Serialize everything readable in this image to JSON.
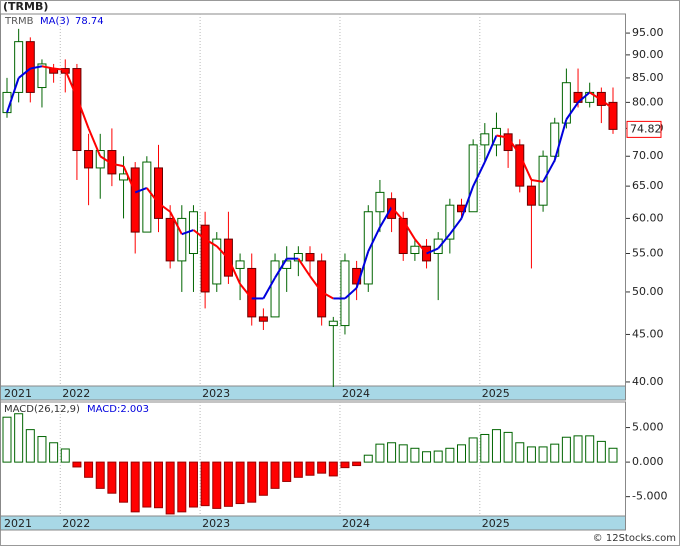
{
  "chart_data": [
    {
      "type": "candlestick",
      "title": "(TRMB)",
      "log_scale": true,
      "categories": [
        "2021",
        null,
        null,
        null,
        null,
        "2022",
        null,
        null,
        null,
        null,
        null,
        null,
        null,
        null,
        null,
        null,
        null,
        "2023",
        null,
        null,
        null,
        null,
        null,
        null,
        null,
        null,
        null,
        null,
        null,
        "2024",
        null,
        null,
        null,
        null,
        null,
        null,
        null,
        null,
        null,
        null,
        null,
        "2025",
        null,
        null,
        null,
        null,
        null,
        null,
        null,
        null,
        null,
        null,
        null
      ],
      "series": [
        {
          "name": "TRMB",
          "up_color": "#006400",
          "down_color": "#ff0000",
          "open": [
            78,
            82,
            93,
            83,
            87,
            87,
            87,
            71,
            68,
            71,
            66,
            68,
            58,
            68,
            60,
            54,
            55,
            59,
            51,
            57,
            53,
            53,
            47,
            47,
            53,
            54,
            55,
            54,
            46,
            46,
            53,
            51,
            61,
            63,
            60,
            55,
            56,
            55,
            57,
            62,
            61,
            72,
            72,
            74,
            72,
            65,
            62,
            70,
            76,
            82,
            80,
            82,
            80
          ],
          "high": [
            85,
            96,
            94,
            89,
            88,
            89,
            88,
            74,
            74,
            75,
            70,
            69,
            70,
            72,
            62,
            62,
            62,
            61,
            58,
            61,
            55,
            55,
            48,
            55,
            56,
            56,
            56,
            55,
            47,
            55,
            54,
            62,
            66,
            64,
            61,
            57,
            57,
            58,
            63,
            63,
            73,
            76,
            78,
            75,
            73,
            66,
            71,
            77,
            87,
            87,
            84,
            83,
            83
          ],
          "low": [
            77,
            80,
            80,
            79,
            84,
            82,
            66,
            62,
            63,
            65,
            60,
            55,
            58,
            58,
            53,
            50,
            50,
            48,
            50,
            51,
            49,
            46,
            45.5,
            47,
            50,
            52,
            52,
            46,
            39.5,
            45,
            49,
            50,
            58,
            58,
            54,
            54,
            53,
            49,
            55,
            60,
            61,
            69,
            70,
            68,
            64,
            53,
            61,
            69,
            75,
            79,
            79,
            76,
            74
          ],
          "close": [
            82,
            93,
            82,
            88,
            86,
            86,
            71,
            68,
            71,
            67,
            67,
            58,
            69,
            60,
            54,
            60,
            61,
            50,
            57,
            52,
            54,
            47,
            46.5,
            54,
            54,
            55,
            54,
            47,
            46.5,
            54,
            51,
            61,
            64,
            60,
            55,
            56,
            54,
            57,
            62,
            61,
            72,
            74,
            75,
            71,
            65,
            62,
            70,
            76,
            84,
            80,
            82,
            79.4,
            74.82
          ]
        },
        {
          "name": "MA(3)",
          "up_color": "#0000dd",
          "down_color": "#ff0000",
          "values": [
            78,
            85,
            87,
            87.5,
            87,
            86.7,
            81,
            75,
            70,
            68.7,
            68.3,
            64,
            64.7,
            62.3,
            61,
            57.7,
            58.3,
            57,
            56,
            54.3,
            51,
            49.2,
            49.2,
            51.8,
            54.3,
            54.3,
            52,
            50,
            49.2,
            49.2,
            50.5,
            55.3,
            58.7,
            61.7,
            59.7,
            57,
            55,
            55.7,
            57.7,
            60,
            65,
            69,
            73.7,
            73.3,
            70.3,
            66,
            65.7,
            69.3,
            76.7,
            80,
            82,
            80.5,
            78.74
          ]
        }
      ],
      "ylim": [
        39.6,
        99.6
      ],
      "yticks": [
        {
          "value": 40,
          "label": "40.00"
        },
        {
          "value": 45,
          "label": "45.00"
        },
        {
          "value": 50,
          "label": "50.00"
        },
        {
          "value": 55,
          "label": "55.00"
        },
        {
          "value": 60,
          "label": "60.00"
        },
        {
          "value": 65,
          "label": "65.00"
        },
        {
          "value": 70,
          "label": "70.00"
        },
        {
          "value": 75,
          "label": "75.00"
        },
        {
          "value": 80,
          "label": "80.00"
        },
        {
          "value": 85,
          "label": "85.00"
        },
        {
          "value": 90,
          "label": "90.00"
        },
        {
          "value": 95,
          "label": "95.00"
        }
      ]
    },
    {
      "type": "bar",
      "title": "MACD(26,12,9)",
      "value_label": "MACD:2.003",
      "up_color": "#006400",
      "down_color": "#ff0000",
      "categories": [
        "2021",
        null,
        null,
        null,
        null,
        "2022",
        null,
        null,
        null,
        null,
        null,
        null,
        null,
        null,
        null,
        null,
        null,
        "2023",
        null,
        null,
        null,
        null,
        null,
        null,
        null,
        null,
        null,
        null,
        null,
        "2024",
        null,
        null,
        null,
        null,
        null,
        null,
        null,
        null,
        null,
        null,
        null,
        "2025",
        null,
        null,
        null,
        null,
        null,
        null,
        null,
        null,
        null,
        null,
        null
      ],
      "values": [
        6.5,
        7,
        4.7,
        3.7,
        2.8,
        1.9,
        -0.7,
        -2.2,
        -3.8,
        -4.5,
        -5.8,
        -7.2,
        -6.5,
        -6.6,
        -7.5,
        -7.2,
        -6.5,
        -6.3,
        -6.7,
        -6.4,
        -6.0,
        -5.8,
        -4.8,
        -3.8,
        -2.8,
        -2.2,
        -1.9,
        -1.6,
        -2.0,
        -0.8,
        -0.5,
        1.0,
        2.6,
        2.8,
        2.5,
        2.0,
        1.5,
        1.6,
        2.0,
        2.5,
        3.5,
        4.0,
        4.7,
        4.3,
        2.8,
        2.2,
        2.2,
        2.6,
        3.6,
        3.8,
        3.8,
        3.0,
        2.003
      ],
      "ylim": [
        -7.8,
        8.7
      ],
      "yticks": [
        {
          "value": -5,
          "label": "-5.000"
        },
        {
          "value": 0,
          "label": "0.000"
        },
        {
          "value": 5,
          "label": "5.000"
        }
      ]
    }
  ],
  "watermark": "© 12Stocks.com"
}
